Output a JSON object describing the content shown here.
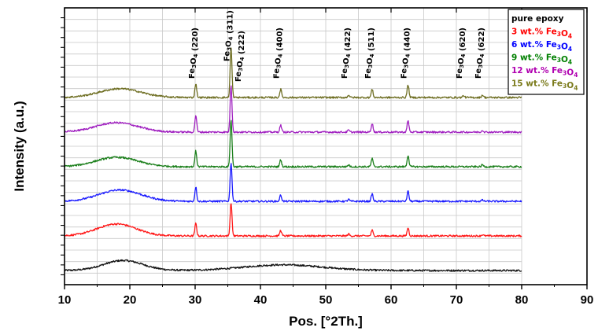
{
  "chart_data": {
    "type": "line",
    "title": "",
    "xlabel": "Pos. [°2Th.]",
    "ylabel": "Intensity (a.u.)",
    "xlim": [
      10,
      90
    ],
    "x_ticks": [
      10,
      20,
      30,
      40,
      50,
      60,
      70,
      80,
      90
    ],
    "grid": true,
    "legend_position": "top-right",
    "series": [
      {
        "name": "pure epoxy",
        "label_color": "#000000",
        "color": "#111111",
        "offset": 0,
        "baseline": 1.0,
        "hump": [
          [
            19,
            1.6,
            3.0
          ],
          [
            43.5,
            0.9,
            6.0
          ]
        ],
        "peaks": [],
        "noise": 0.28
      },
      {
        "name": "3 wt.% Fe3O4",
        "label_color": "#ff0000",
        "color": "#ff1a1a",
        "offset": 1,
        "baseline": 1.0,
        "hump": [
          [
            18,
            1.9,
            3.0
          ]
        ],
        "peaks": [
          [
            30.1,
            2.0
          ],
          [
            35.5,
            5.3
          ],
          [
            43.1,
            0.9
          ],
          [
            53.5,
            0.3
          ],
          [
            57.1,
            0.9
          ],
          [
            62.6,
            1.3
          ],
          [
            74.0,
            0.2
          ]
        ],
        "noise": 0.28
      },
      {
        "name": "6 wt.% Fe3O4",
        "label_color": "#0000ff",
        "color": "#1a1aff",
        "offset": 2,
        "baseline": 1.0,
        "hump": [
          [
            18.5,
            1.8,
            3.2
          ]
        ],
        "peaks": [
          [
            30.1,
            2.3
          ],
          [
            35.5,
            6.2
          ],
          [
            43.1,
            1.0
          ],
          [
            53.5,
            0.3
          ],
          [
            57.1,
            1.2
          ],
          [
            62.6,
            1.6
          ],
          [
            74.0,
            0.2
          ]
        ],
        "noise": 0.28
      },
      {
        "name": "9 wt.% Fe3O4",
        "label_color": "#008000",
        "color": "#1b7f1b",
        "offset": 3,
        "baseline": 1.0,
        "hump": [
          [
            18,
            1.5,
            3.2
          ]
        ],
        "peaks": [
          [
            30.1,
            2.5
          ],
          [
            35.5,
            7.5
          ],
          [
            43.1,
            1.1
          ],
          [
            53.5,
            0.3
          ],
          [
            57.1,
            1.3
          ],
          [
            62.6,
            1.8
          ],
          [
            74.0,
            0.3
          ]
        ],
        "noise": 0.28
      },
      {
        "name": "12 wt.% Fe3O4",
        "label_color": "#b000b0",
        "color": "#a020c0",
        "offset": 4,
        "baseline": 1.0,
        "hump": [
          [
            18,
            1.5,
            3.2
          ]
        ],
        "peaks": [
          [
            30.1,
            2.7
          ],
          [
            35.5,
            7.5
          ],
          [
            43.1,
            1.1
          ],
          [
            53.5,
            0.3
          ],
          [
            57.1,
            1.4
          ],
          [
            62.6,
            1.8
          ],
          [
            74.0,
            0.3
          ]
        ],
        "noise": 0.28
      },
      {
        "name": "15 wt.% Fe3O4",
        "label_color": "#7a7a1a",
        "color": "#6e6e22",
        "offset": 5,
        "baseline": 1.0,
        "hump": [
          [
            18.5,
            1.4,
            3.2
          ]
        ],
        "peaks": [
          [
            30.1,
            2.2
          ],
          [
            35.5,
            7.9
          ],
          [
            43.1,
            1.3
          ],
          [
            53.5,
            0.4
          ],
          [
            57.1,
            1.3
          ],
          [
            62.6,
            2.0
          ],
          [
            71.1,
            0.3
          ],
          [
            74.0,
            0.4
          ]
        ],
        "noise": 0.28
      }
    ],
    "peak_annotations": [
      {
        "x": 30.1,
        "compound": "Fe3O4",
        "hkl": "(220)"
      },
      {
        "x": 35.5,
        "compound": "Fe3O4",
        "hkl": "(311)"
      },
      {
        "x": 37.2,
        "compound": "Fe3O4",
        "hkl": "(222)"
      },
      {
        "x": 43.1,
        "compound": "Fe3O4",
        "hkl": "(400)"
      },
      {
        "x": 53.5,
        "compound": "Fe3O4",
        "hkl": "(422)"
      },
      {
        "x": 57.1,
        "compound": "Fe3O4",
        "hkl": "(511)"
      },
      {
        "x": 62.6,
        "compound": "Fe3O4",
        "hkl": "(440)"
      },
      {
        "x": 71.1,
        "compound": "Fe3O4",
        "hkl": "(620)"
      },
      {
        "x": 74.0,
        "compound": "Fe3O4",
        "hkl": "(622)"
      }
    ]
  }
}
